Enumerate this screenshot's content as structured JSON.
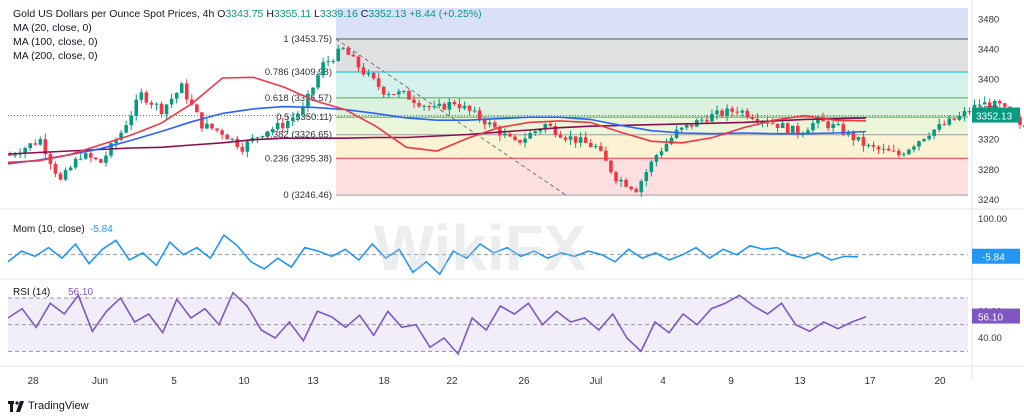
{
  "header": {
    "symbol": "Gold US Dollars per Ounce Spot Prices, 4h",
    "o_label": "O",
    "o": "3343.75",
    "h_label": "H",
    "h": "3355.11",
    "l_label": "L",
    "l": "3339.16",
    "c_label": "C",
    "c": "3352.13",
    "change": "+8.44 (+0.25%)",
    "ma20": "MA (20, close, 0)",
    "ma100": "MA (100, close, 0)",
    "ma200": "MA (200, close, 0)"
  },
  "footer": {
    "brand": "TradingView"
  },
  "watermark": "WikiFX",
  "colors": {
    "up": "#089981",
    "down": "#f23645",
    "ma20": "#f23645",
    "ma100": "#2962ff",
    "ma200": "#880e4f",
    "osc": "#2196f3",
    "rsi": "#7e57c2",
    "fib_line": "#2a2e39"
  },
  "chart_data": [
    {
      "type": "candlestick",
      "title": "Gold US Dollars per Ounce Spot Prices, 4h",
      "x_ticks": [
        "28",
        "Jun",
        "5",
        "10",
        "13",
        "18",
        "22",
        "26",
        "Jul",
        "4",
        "9",
        "13",
        "17",
        "20"
      ],
      "y_ticks": [
        3240,
        3280,
        3320,
        3360,
        3400,
        3440,
        3480
      ],
      "ylim": [
        3232,
        3495
      ],
      "last_price": "3352.13",
      "ohlc_summary": {
        "open": 3343.75,
        "high": 3355.11,
        "low": 3339.16,
        "close": 3352.13,
        "change": "+8.44 (+0.25%)"
      },
      "fibonacci": [
        {
          "level": "1",
          "price": 3453.75
        },
        {
          "level": "0.786",
          "price": 3409.98
        },
        {
          "level": "0.618",
          "price": 3375.57
        },
        {
          "level": "0.5",
          "price": 3350.11
        },
        {
          "level": "0.382",
          "price": 3326.65
        },
        {
          "level": "0.236",
          "price": 3295.38
        },
        {
          "level": "0",
          "price": 3246.46
        }
      ],
      "fib_labels": [
        "1 (3453.75)",
        "0.786 (3409.98)",
        "0.618 (3375.57)",
        "0.5 (3350.11)",
        "0.382 (3326.65)",
        "0.236 (3295.38)",
        "0 (3246.46)"
      ],
      "series": [
        {
          "name": "MA (20, close, 0)",
          "values": [
            3290,
            3292,
            3300,
            3313,
            3326,
            3342,
            3368,
            3402,
            3403,
            3390,
            3372,
            3360,
            3338,
            3310,
            3305,
            3322,
            3336,
            3343,
            3345,
            3343,
            3330,
            3318,
            3316,
            3323,
            3336,
            3346,
            3352,
            3346,
            3345
          ]
        },
        {
          "name": "MA (100, close, 0)",
          "values": [
            3288,
            3293,
            3300,
            3308,
            3319,
            3331,
            3344,
            3355,
            3361,
            3364,
            3363,
            3360,
            3355,
            3349,
            3346,
            3346,
            3348,
            3350,
            3350,
            3347,
            3339,
            3332,
            3329,
            3328,
            3329,
            3328,
            3328,
            3329,
            3331
          ]
        },
        {
          "name": "MA (200, close, 0)",
          "values": [
            3301,
            3303,
            3305,
            3307,
            3309,
            3310,
            3313,
            3316,
            3320,
            3322,
            3322,
            3322,
            3323,
            3323,
            3325,
            3327,
            3330,
            3333,
            3336,
            3338,
            3339,
            3340,
            3341,
            3342,
            3343,
            3345,
            3347,
            3348,
            3349
          ]
        }
      ]
    },
    {
      "type": "line",
      "title": "Mom (10, close)",
      "value_label": "-5.84",
      "y_ticks": [
        100,
        0
      ],
      "y_tick_labels": [
        "100.00",
        ""
      ],
      "ylim": [
        -60,
        120
      ],
      "series": [
        {
          "name": "Mom (10, close)",
          "values": [
            -20,
            10,
            -5,
            20,
            -10,
            30,
            -25,
            15,
            40,
            -15,
            5,
            -30,
            35,
            0,
            20,
            -10,
            55,
            25,
            -20,
            -40,
            -10,
            -35,
            20,
            10,
            -5,
            15,
            -15,
            30,
            -10,
            15,
            -50,
            -20,
            -55,
            10,
            -10,
            30,
            5,
            20,
            -5,
            10,
            -10,
            5,
            -5,
            10,
            0,
            -20,
            15,
            -10,
            5,
            -15,
            0,
            20,
            -10,
            15,
            0,
            25,
            15,
            20,
            0,
            -10,
            5,
            -15,
            -5,
            -6
          ]
        }
      ]
    },
    {
      "type": "line",
      "title": "RSI (14)",
      "value_label": "56.10",
      "y_ticks": [
        80,
        60,
        40
      ],
      "y_tick_labels": [
        "",
        "60.00",
        "40.00"
      ],
      "bands": [
        70,
        50,
        30
      ],
      "ylim": [
        22,
        82
      ],
      "series": [
        {
          "name": "RSI (14)",
          "values": [
            55,
            62,
            48,
            66,
            58,
            72,
            45,
            60,
            70,
            52,
            58,
            44,
            69,
            55,
            62,
            50,
            74,
            64,
            46,
            40,
            52,
            38,
            60,
            56,
            48,
            57,
            42,
            60,
            48,
            50,
            33,
            40,
            28,
            55,
            46,
            64,
            58,
            66,
            50,
            60,
            52,
            55,
            46,
            58,
            40,
            30,
            52,
            44,
            58,
            50,
            62,
            66,
            72,
            64,
            58,
            66,
            50,
            45,
            52,
            47,
            52,
            56
          ]
        }
      ]
    }
  ]
}
